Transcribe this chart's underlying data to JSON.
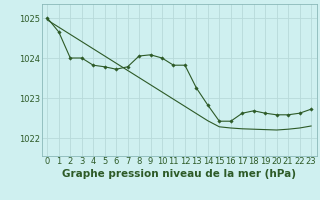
{
  "title": "Graphe pression niveau de la mer (hPa)",
  "background_color": "#cff0f0",
  "grid_color": "#b8dada",
  "line_color": "#2d5a27",
  "x_ticks": [
    0,
    1,
    2,
    3,
    4,
    5,
    6,
    7,
    8,
    9,
    10,
    11,
    12,
    13,
    14,
    15,
    16,
    17,
    18,
    19,
    20,
    21,
    22,
    23
  ],
  "y_ticks": [
    1022,
    1023,
    1024,
    1025
  ],
  "ylim": [
    1021.55,
    1025.35
  ],
  "xlim": [
    -0.5,
    23.5
  ],
  "pressure_data": [
    1025.0,
    1024.65,
    1024.0,
    1024.0,
    1023.82,
    1023.78,
    1023.72,
    1023.78,
    1024.05,
    1024.08,
    1024.0,
    1023.82,
    1023.82,
    1023.25,
    1022.82,
    1022.42,
    1022.42,
    1022.62,
    1022.68,
    1022.62,
    1022.58,
    1022.58,
    1022.62,
    1022.72
  ],
  "trend_data": [
    1024.95,
    1024.77,
    1024.59,
    1024.41,
    1024.23,
    1024.05,
    1023.87,
    1023.69,
    1023.51,
    1023.33,
    1023.15,
    1022.97,
    1022.79,
    1022.61,
    1022.43,
    1022.28,
    1022.25,
    1022.23,
    1022.22,
    1022.21,
    1022.2,
    1022.22,
    1022.25,
    1022.3
  ],
  "title_fontsize": 7.5,
  "tick_fontsize": 6,
  "tick_color": "#2d5a27",
  "label_color": "#2d5a27",
  "spine_color": "#8ab8b8"
}
